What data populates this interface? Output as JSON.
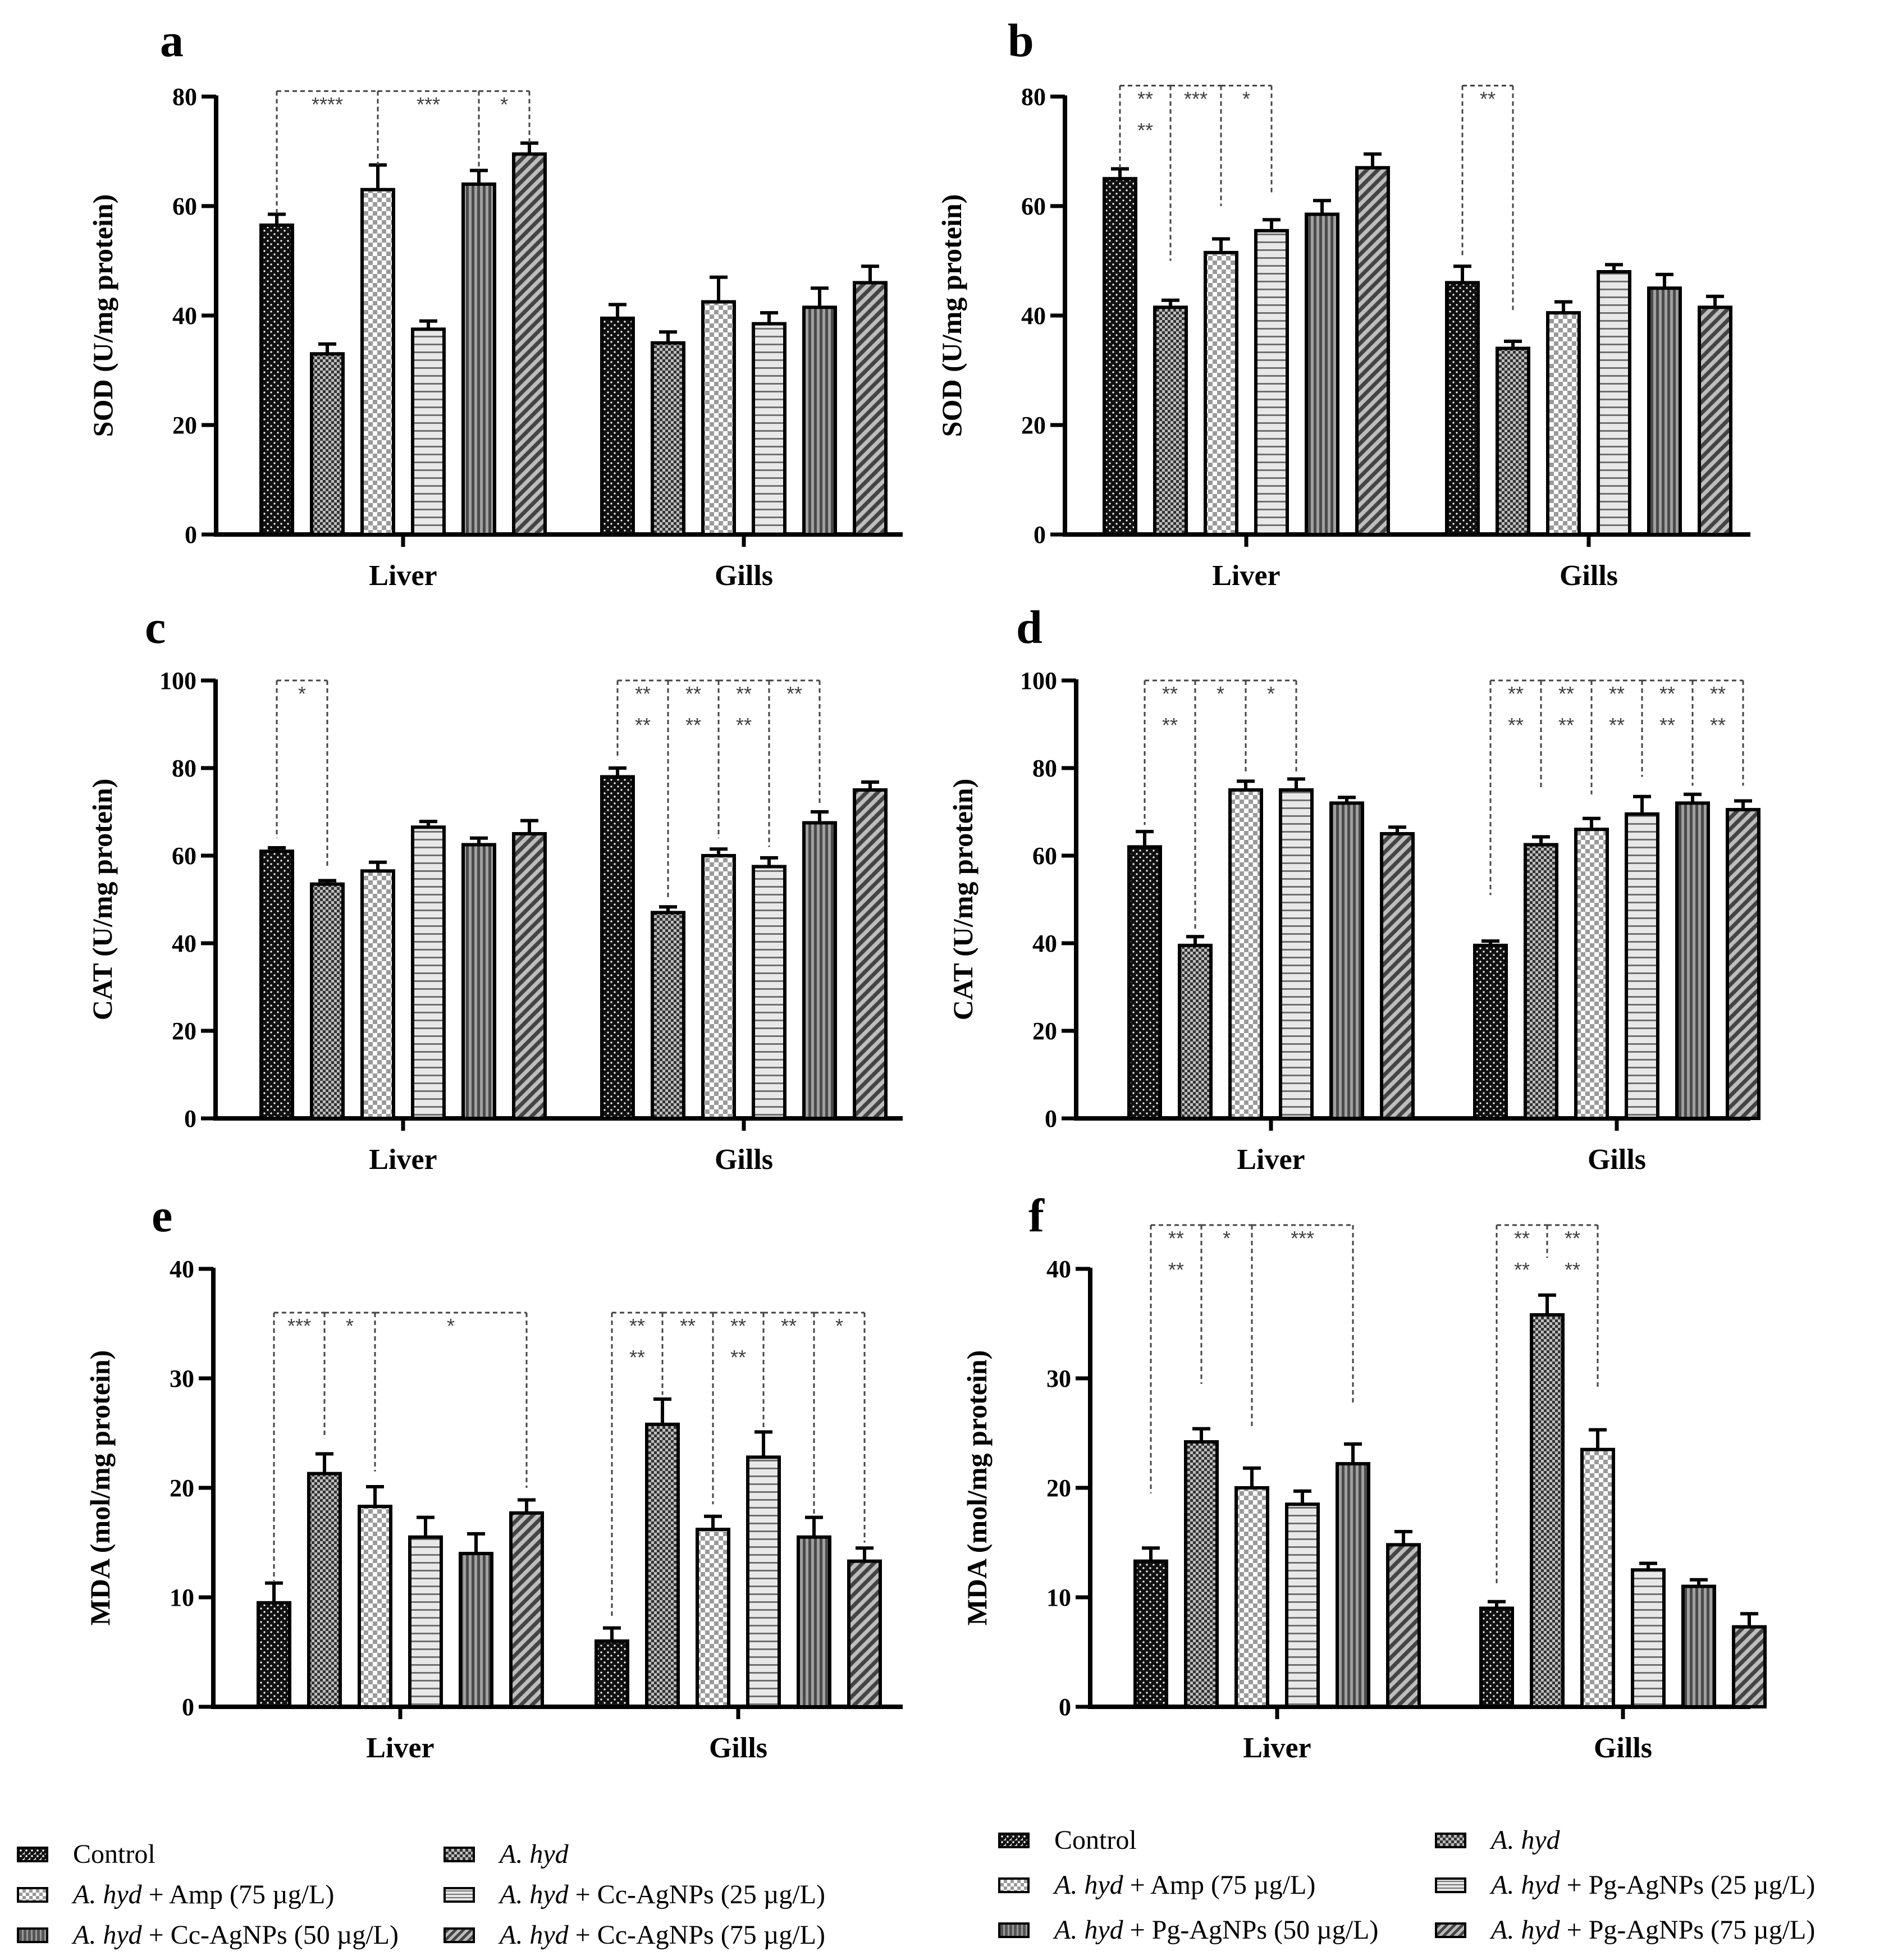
{
  "colors": {
    "ink": "#000000",
    "annotation": "#404040"
  },
  "chart_data": [
    {
      "panel": "a",
      "type": "bar",
      "ylabel": "SOD (U/mg protein)",
      "ylim": [
        0,
        80
      ],
      "yticks": [
        0,
        20,
        40,
        60,
        80
      ],
      "groups": [
        "Liver",
        "Gills"
      ],
      "series": [
        {
          "name": "Control",
          "values": [
            56.5,
            39.5
          ],
          "errors": [
            2,
            2.5
          ]
        },
        {
          "name": "A. hyd",
          "values": [
            33,
            35
          ],
          "errors": [
            1.8,
            2
          ]
        },
        {
          "name": "A. hyd + Amp (75 µg/L)",
          "values": [
            63,
            42.5
          ],
          "errors": [
            4.5,
            4.5
          ]
        },
        {
          "name": "A. hyd + Cc-AgNPs (25 µg/L)",
          "values": [
            37.5,
            38.5
          ],
          "errors": [
            1.5,
            2
          ]
        },
        {
          "name": "A. hyd + Cc-AgNPs (50 µg/L)",
          "values": [
            64,
            41.5
          ],
          "errors": [
            2.5,
            3.5
          ]
        },
        {
          "name": "A. hyd + Cc-AgNPs (75 µg/L)",
          "values": [
            69.5,
            46
          ],
          "errors": [
            2,
            3
          ]
        }
      ],
      "brackets": [
        {
          "group": 0,
          "from": 0,
          "to": 2,
          "label": "****",
          "level": 81,
          "drop_from": 58.5,
          "drop_to": 67.5
        },
        {
          "group": 0,
          "from": 2,
          "to": 4,
          "label": "***",
          "level": 81,
          "drop_from": 67.5,
          "drop_to": 66.5
        },
        {
          "group": 0,
          "from": 4,
          "to": 5,
          "label": "*",
          "level": 81,
          "drop_from": 66.5,
          "drop_to": 71.5
        }
      ]
    },
    {
      "panel": "b",
      "type": "bar",
      "ylabel": "SOD (U/mg protein)",
      "ylim": [
        0,
        80
      ],
      "yticks": [
        0,
        20,
        40,
        60,
        80
      ],
      "groups": [
        "Liver",
        "Gills"
      ],
      "series": [
        {
          "name": "Control",
          "values": [
            65,
            46
          ],
          "errors": [
            1.8,
            3
          ]
        },
        {
          "name": "A. hyd",
          "values": [
            41.5,
            34
          ],
          "errors": [
            1.3,
            1.3
          ]
        },
        {
          "name": "A. hyd + Amp (75 µg/L)",
          "values": [
            51.5,
            40.5
          ],
          "errors": [
            2.5,
            2
          ]
        },
        {
          "name": "A. hyd + Pg-AgNPs (25 µg/L)",
          "values": [
            55.5,
            48
          ],
          "errors": [
            2,
            1.3
          ]
        },
        {
          "name": "A. hyd + Pg-AgNPs (50 µg/L)",
          "values": [
            58.5,
            45
          ],
          "errors": [
            2.5,
            2.5
          ]
        },
        {
          "name": "A. hyd + Pg-AgNPs (75 µg/L)",
          "values": [
            67,
            41.5
          ],
          "errors": [
            2.5,
            2
          ]
        }
      ],
      "brackets": [
        {
          "group": 0,
          "from": 0,
          "to": 1,
          "label": "**\n**",
          "level": 82,
          "drop_from": 67,
          "drop_to": 50
        },
        {
          "group": 0,
          "from": 1,
          "to": 2,
          "label": "***",
          "level": 82,
          "drop_from": 50,
          "drop_to": 60
        },
        {
          "group": 0,
          "from": 2,
          "to": 3,
          "label": "*",
          "level": 82,
          "drop_from": 60,
          "drop_to": 62
        },
        {
          "group": 1,
          "from": 0,
          "to": 1,
          "label": "**",
          "level": 82,
          "drop_from": 51,
          "drop_to": 41
        }
      ]
    },
    {
      "panel": "c",
      "type": "bar",
      "ylabel": "CAT (U/mg protein)",
      "ylim": [
        0,
        100
      ],
      "yticks": [
        0,
        20,
        40,
        60,
        80,
        100
      ],
      "groups": [
        "Liver",
        "Gills"
      ],
      "series": [
        {
          "name": "Control",
          "values": [
            61,
            78
          ],
          "errors": [
            0.8,
            2
          ]
        },
        {
          "name": "A. hyd",
          "values": [
            53.5,
            47
          ],
          "errors": [
            0.8,
            1.3
          ]
        },
        {
          "name": "A. hyd + Amp (75 µg/L)",
          "values": [
            56.5,
            60
          ],
          "errors": [
            2,
            1.5
          ]
        },
        {
          "name": "A. hyd + Cc-AgNPs (25 µg/L)",
          "values": [
            66.5,
            57.5
          ],
          "errors": [
            1.3,
            2
          ]
        },
        {
          "name": "A. hyd + Cc-AgNPs (50 µg/L)",
          "values": [
            62.5,
            67.5
          ],
          "errors": [
            1.5,
            2.5
          ]
        },
        {
          "name": "A. hyd + Cc-AgNPs (75 µg/L)",
          "values": [
            65,
            75
          ],
          "errors": [
            3,
            1.8
          ]
        }
      ],
      "brackets": [
        {
          "group": 0,
          "from": 0,
          "to": 1,
          "label": "*",
          "level": 100,
          "drop_from": 64,
          "drop_to": 57
        },
        {
          "group": 1,
          "from": 0,
          "to": 1,
          "label": "**\n**",
          "level": 100,
          "drop_from": 82,
          "drop_to": 50
        },
        {
          "group": 1,
          "from": 1,
          "to": 2,
          "label": "**\n**",
          "level": 100,
          "drop_from": 50,
          "drop_to": 64
        },
        {
          "group": 1,
          "from": 2,
          "to": 3,
          "label": "**\n**",
          "level": 100,
          "drop_from": 64,
          "drop_to": 62
        },
        {
          "group": 1,
          "from": 3,
          "to": 4,
          "label": "**",
          "level": 100,
          "drop_from": 62,
          "drop_to": 72
        }
      ]
    },
    {
      "panel": "d",
      "type": "bar",
      "ylabel": "CAT (U/mg protein)",
      "ylim": [
        0,
        100
      ],
      "yticks": [
        0,
        20,
        40,
        60,
        80,
        100
      ],
      "groups": [
        "Liver",
        "Gills"
      ],
      "series": [
        {
          "name": "Control",
          "values": [
            62,
            39.5
          ],
          "errors": [
            3.5,
            1
          ]
        },
        {
          "name": "A. hyd",
          "values": [
            39.5,
            62.5
          ],
          "errors": [
            2,
            1.8
          ]
        },
        {
          "name": "A. hyd + Amp (75 µg/L)",
          "values": [
            75,
            66
          ],
          "errors": [
            2,
            2.5
          ]
        },
        {
          "name": "A. hyd + Pg-AgNPs (25 µg/L)",
          "values": [
            75,
            69.5
          ],
          "errors": [
            2.5,
            4
          ]
        },
        {
          "name": "A. hyd + Pg-AgNPs (50 µg/L)",
          "values": [
            72,
            72
          ],
          "errors": [
            1.3,
            2
          ]
        },
        {
          "name": "A. hyd + Pg-AgNPs (75 µg/L)",
          "values": [
            65,
            70.5
          ],
          "errors": [
            1.5,
            2
          ]
        }
      ],
      "brackets": [
        {
          "group": 0,
          "from": 0,
          "to": 1,
          "label": "**\n**",
          "level": 100,
          "drop_from": 67,
          "drop_to": 43
        },
        {
          "group": 0,
          "from": 1,
          "to": 2,
          "label": "*",
          "level": 100,
          "drop_from": 43,
          "drop_to": 79
        },
        {
          "group": 0,
          "from": 2,
          "to": 3,
          "label": "*",
          "level": 100,
          "drop_from": 79,
          "drop_to": 79
        },
        {
          "group": 1,
          "from": 0,
          "to": 1,
          "label": "**\n**",
          "level": 100,
          "drop_from": 51,
          "drop_to": 75
        },
        {
          "group": 1,
          "from": 1,
          "to": 2,
          "label": "**\n**",
          "level": 100,
          "drop_from": 75,
          "drop_to": 74
        },
        {
          "group": 1,
          "from": 2,
          "to": 3,
          "label": "**\n**",
          "level": 100,
          "drop_from": 74,
          "drop_to": 78
        },
        {
          "group": 1,
          "from": 3,
          "to": 4,
          "label": "**\n**",
          "level": 100,
          "drop_from": 78,
          "drop_to": 76
        },
        {
          "group": 1,
          "from": 4,
          "to": 5,
          "label": "**\n**",
          "level": 100,
          "drop_from": 76,
          "drop_to": 76
        }
      ]
    },
    {
      "panel": "e",
      "type": "bar",
      "ylabel": "MDA (mol/mg protein)",
      "ylim": [
        0,
        40
      ],
      "yticks": [
        0,
        10,
        20,
        30,
        40
      ],
      "groups": [
        "Liver",
        "Gills"
      ],
      "series": [
        {
          "name": "Control",
          "values": [
            9.5,
            6
          ],
          "errors": [
            1.8,
            1.2
          ]
        },
        {
          "name": "A. hyd",
          "values": [
            21.3,
            25.8
          ],
          "errors": [
            1.8,
            2.3
          ]
        },
        {
          "name": "A. hyd + Amp (75 µg/L)",
          "values": [
            18.3,
            16.2
          ],
          "errors": [
            1.8,
            1.2
          ]
        },
        {
          "name": "A. hyd + Cc-AgNPs (25 µg/L)",
          "values": [
            15.5,
            22.8
          ],
          "errors": [
            1.8,
            2.3
          ]
        },
        {
          "name": "A. hyd + Cc-AgNPs (50 µg/L)",
          "values": [
            14,
            15.5
          ],
          "errors": [
            1.8,
            1.8
          ]
        },
        {
          "name": "A. hyd + Cc-AgNPs (75 µg/L)",
          "values": [
            17.7,
            13.3
          ],
          "errors": [
            1.2,
            1.2
          ]
        }
      ],
      "brackets": [
        {
          "group": 0,
          "from": 0,
          "to": 1,
          "label": "***",
          "level": 36,
          "drop_from": 11.5,
          "drop_to": 24.5
        },
        {
          "group": 0,
          "from": 1,
          "to": 2,
          "label": "*",
          "level": 36,
          "drop_from": 24.5,
          "drop_to": 21.5
        },
        {
          "group": 0,
          "from": 2,
          "to": 5,
          "label": "*",
          "level": 36,
          "drop_from": 21.5,
          "drop_to": 20
        },
        {
          "group": 1,
          "from": 0,
          "to": 1,
          "label": "**\n**",
          "level": 36,
          "drop_from": 8,
          "drop_to": 28.5
        },
        {
          "group": 1,
          "from": 1,
          "to": 2,
          "label": "**",
          "level": 36,
          "drop_from": 28.5,
          "drop_to": 18.5
        },
        {
          "group": 1,
          "from": 2,
          "to": 3,
          "label": "**\n**",
          "level": 36,
          "drop_from": 18.5,
          "drop_to": 25.5
        },
        {
          "group": 1,
          "from": 3,
          "to": 4,
          "label": "**",
          "level": 36,
          "drop_from": 25.5,
          "drop_to": 17.5
        },
        {
          "group": 1,
          "from": 4,
          "to": 5,
          "label": "*",
          "level": 36,
          "drop_from": 17.5,
          "drop_to": 15
        }
      ]
    },
    {
      "panel": "f",
      "type": "bar",
      "ylabel": "MDA (mol/mg protein)",
      "ylim": [
        0,
        40
      ],
      "yticks": [
        0,
        10,
        20,
        30,
        40
      ],
      "groups": [
        "Liver",
        "Gills"
      ],
      "series": [
        {
          "name": "Control",
          "values": [
            13.3,
            9
          ],
          "errors": [
            1.2,
            0.6
          ]
        },
        {
          "name": "A. hyd",
          "values": [
            24.2,
            35.8
          ],
          "errors": [
            1.2,
            1.8
          ]
        },
        {
          "name": "A. hyd + Amp (75 µg/L)",
          "values": [
            20,
            23.5
          ],
          "errors": [
            1.8,
            1.8
          ]
        },
        {
          "name": "A. hyd + Pg-AgNPs (25 µg/L)",
          "values": [
            18.5,
            12.5
          ],
          "errors": [
            1.2,
            0.6
          ]
        },
        {
          "name": "A. hyd + Pg-AgNPs (50 µg/L)",
          "values": [
            22.2,
            11
          ],
          "errors": [
            1.8,
            0.6
          ]
        },
        {
          "name": "A. hyd + Pg-AgNPs (75 µg/L)",
          "values": [
            14.8,
            7.3
          ],
          "errors": [
            1.2,
            1.2
          ]
        }
      ],
      "brackets": [
        {
          "group": 0,
          "from": 0,
          "to": 1,
          "label": "**\n**",
          "level": 44,
          "drop_from": 19.5,
          "drop_to": 29.5
        },
        {
          "group": 0,
          "from": 1,
          "to": 2,
          "label": "*",
          "level": 44,
          "drop_from": 29.5,
          "drop_to": 25.5
        },
        {
          "group": 0,
          "from": 2,
          "to": 4,
          "label": "***",
          "level": 44,
          "drop_from": 25.5,
          "drop_to": 27.5
        },
        {
          "group": 1,
          "from": 0,
          "to": 1,
          "label": "**\n**",
          "level": 44,
          "drop_from": 11,
          "drop_to": 41
        },
        {
          "group": 1,
          "from": 1,
          "to": 2,
          "label": "**\n**",
          "level": 44,
          "drop_from": 41,
          "drop_to": 29
        }
      ]
    }
  ],
  "legend_left": {
    "items": [
      {
        "italic": "",
        "text": "Control"
      },
      {
        "italic": "A. hyd",
        "text": ""
      },
      {
        "italic": "A. hyd",
        "text": " + Amp (75 µg/L)"
      },
      {
        "italic": "A. hyd",
        "text": " + Cc-AgNPs (25 µg/L)"
      },
      {
        "italic": "A. hyd",
        "text": " + Cc-AgNPs (50 µg/L)"
      },
      {
        "italic": "A. hyd",
        "text": " + Cc-AgNPs (75 µg/L)"
      }
    ]
  },
  "legend_right": {
    "items": [
      {
        "italic": "",
        "text": "Control"
      },
      {
        "italic": "A. hyd",
        "text": ""
      },
      {
        "italic": "A. hyd",
        "text": " + Amp (75 µg/L)"
      },
      {
        "italic": "A. hyd",
        "text": " + Pg-AgNPs (25 µg/L)"
      },
      {
        "italic": "A. hyd",
        "text": " + Pg-AgNPs (50 µg/L)"
      },
      {
        "italic": "A. hyd",
        "text": " + Pg-AgNPs (75 µg/L)"
      }
    ]
  }
}
